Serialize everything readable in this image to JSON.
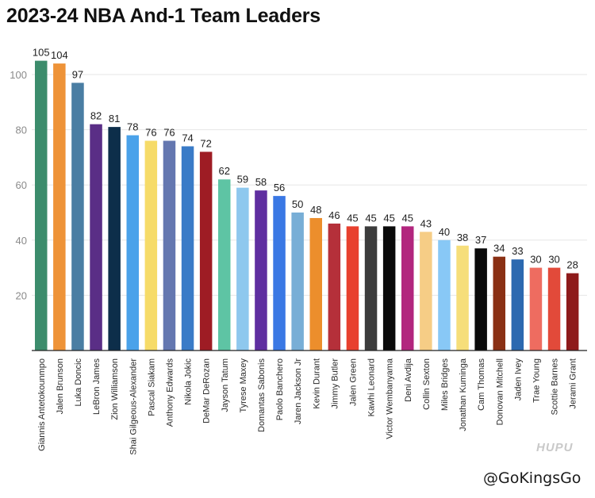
{
  "title": "2023-24 NBA And-1 Team Leaders",
  "watermark": "HUPU",
  "credit": "@GoKingsGo",
  "chart_data": {
    "type": "bar",
    "title": "2023-24 NBA And-1 Team Leaders",
    "xlabel": "",
    "ylabel": "",
    "ylim": [
      0,
      105
    ],
    "yticks": [
      20,
      40,
      60,
      80,
      100
    ],
    "grid": true,
    "legend": "none",
    "categories": [
      "Giannis Antetokounmpo",
      "Jalen Brunson",
      "Luka Doncic",
      "LeBron James",
      "Zion Williamson",
      "Shai Gilgeous-Alexander",
      "Pascal Siakam",
      "Anthony Edwards",
      "Nikola Jokic",
      "DeMar DeRozan",
      "Jayson Tatum",
      "Tyrese Maxey",
      "Domantas Sabonis",
      "Paolo Banchero",
      "Jaren Jackson Jr",
      "Kevin Durant",
      "Jimmy Butler",
      "Jalen Green",
      "Kawhi Leonard",
      "Victor Wembanyama",
      "Deni Avdija",
      "Collin Sexton",
      "Miles Bridges",
      "Jonathan Kuminga",
      "Cam Thomas",
      "Donovan Mitchell",
      "Jaden Ivey",
      "Trae Young",
      "Scottie Barnes",
      "Jerami Grant"
    ],
    "values": [
      105,
      104,
      97,
      82,
      81,
      78,
      76,
      76,
      74,
      72,
      62,
      59,
      58,
      56,
      50,
      48,
      46,
      45,
      45,
      45,
      45,
      43,
      40,
      38,
      37,
      34,
      33,
      30,
      30,
      28
    ],
    "colors": [
      "#3c8c6c",
      "#ee9338",
      "#4a7ea3",
      "#5a2e86",
      "#0d2e4a",
      "#4aa2ea",
      "#f6db68",
      "#6477b0",
      "#3a7bc7",
      "#9e1c24",
      "#5ec4a4",
      "#8ec8ee",
      "#5f2ea0",
      "#3a78e4",
      "#78aed6",
      "#ec8e2c",
      "#b5303a",
      "#e8402e",
      "#3c3c3c",
      "#0a0a0a",
      "#b2267e",
      "#f6cd86",
      "#88c8f6",
      "#f6de7a",
      "#0a0a0a",
      "#8a3014",
      "#2c69b0",
      "#ee6c60",
      "#e24a3a",
      "#8e1a1a"
    ]
  }
}
